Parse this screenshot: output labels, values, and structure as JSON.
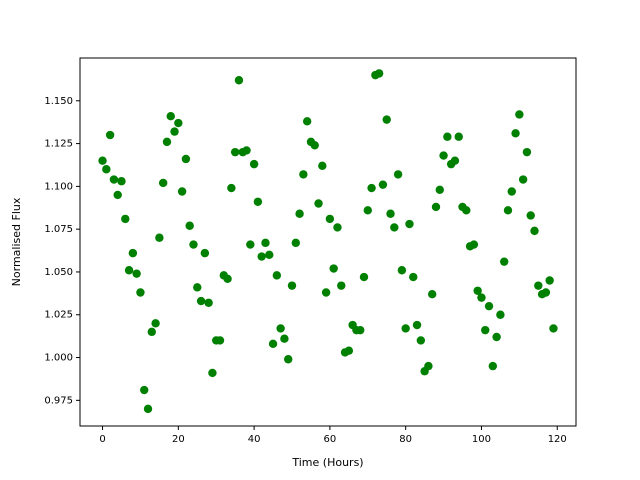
{
  "chart_data": {
    "type": "scatter",
    "x_label": "Time (Hours)",
    "y_label": "Normalised Flux",
    "x": [
      0,
      1,
      2,
      3,
      4,
      5,
      6,
      7,
      8,
      9,
      10,
      11,
      12,
      13,
      14,
      15,
      16,
      17,
      18,
      19,
      20,
      21,
      22,
      23,
      24,
      25,
      26,
      27,
      28,
      29,
      30,
      31,
      32,
      33,
      34,
      35,
      36,
      37,
      38,
      39,
      40,
      41,
      42,
      43,
      44,
      45,
      46,
      47,
      48,
      49,
      50,
      51,
      52,
      53,
      54,
      55,
      56,
      57,
      58,
      59,
      60,
      61,
      62,
      63,
      64,
      65,
      66,
      67,
      68,
      69,
      70,
      71,
      72,
      73,
      74,
      75,
      76,
      77,
      78,
      79,
      80,
      81,
      82,
      83,
      84,
      85,
      86,
      87,
      88,
      89,
      90,
      91,
      92,
      93,
      94,
      95,
      96,
      97,
      98,
      99,
      100,
      101,
      102,
      103,
      104,
      105,
      106,
      107,
      108,
      109,
      110,
      111,
      112,
      113,
      114,
      115,
      116,
      117,
      118,
      119
    ],
    "values": [
      1.115,
      1.11,
      1.13,
      1.104,
      1.095,
      1.103,
      1.081,
      1.051,
      1.061,
      1.049,
      1.038,
      0.981,
      0.97,
      1.015,
      1.02,
      1.07,
      1.102,
      1.126,
      1.141,
      1.132,
      1.137,
      1.097,
      1.116,
      1.077,
      1.066,
      1.041,
      1.033,
      1.061,
      1.032,
      0.991,
      1.01,
      1.01,
      1.048,
      1.046,
      1.099,
      1.12,
      1.162,
      1.12,
      1.121,
      1.066,
      1.113,
      1.091,
      1.059,
      1.067,
      1.06,
      1.008,
      1.048,
      1.017,
      1.011,
      0.999,
      1.042,
      1.067,
      1.084,
      1.107,
      1.138,
      1.126,
      1.124,
      1.09,
      1.112,
      1.038,
      1.081,
      1.052,
      1.076,
      1.042,
      1.003,
      1.004,
      1.019,
      1.016,
      1.016,
      1.047,
      1.086,
      1.099,
      1.165,
      1.166,
      1.101,
      1.139,
      1.084,
      1.076,
      1.107,
      1.051,
      1.017,
      1.078,
      1.047,
      1.019,
      1.01,
      0.992,
      0.995,
      1.037,
      1.088,
      1.098,
      1.118,
      1.129,
      1.113,
      1.115,
      1.129,
      1.088,
      1.086,
      1.065,
      1.066,
      1.039,
      1.035,
      1.016,
      1.03,
      0.995,
      1.012,
      1.025,
      1.056,
      1.086,
      1.097,
      1.131,
      1.142,
      1.104,
      1.12,
      1.083,
      1.074,
      1.042,
      1.037,
      1.038,
      1.045,
      1.017
    ],
    "color": "#008000",
    "xlim": [
      -5.95,
      124.95
    ],
    "xticks": [
      0,
      20,
      40,
      60,
      80,
      100,
      120
    ],
    "ylim": [
      0.96,
      1.175
    ],
    "yticks": [
      0.975,
      {
        "value": 1.0,
        "label": "1.000"
      },
      1.025,
      {
        "value": 1.05,
        "label": "1.050"
      },
      1.075,
      {
        "value": 1.1,
        "label": "1.100"
      },
      1.125,
      {
        "value": 1.15,
        "label": "1.150"
      }
    ]
  }
}
